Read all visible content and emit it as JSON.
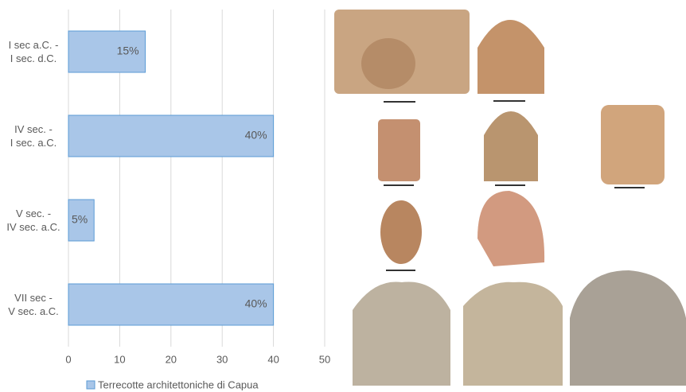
{
  "chart_data": {
    "type": "bar",
    "orientation": "horizontal",
    "categories": [
      "I sec a.C. -\nI sec. d.C.",
      "IV sec. -\nI sec. a.C.",
      "V sec. -\nIV sec. a.C.",
      "VII sec -\nV sec. a.C."
    ],
    "series": [
      {
        "name": "Terrecotte architettoniche di Capua",
        "color": "#a9c6e8",
        "values": [
          15,
          40,
          5,
          40
        ],
        "value_labels": [
          "15%",
          "40%",
          "5%",
          "40%"
        ]
      }
    ],
    "xlim": [
      0,
      50
    ],
    "xticks": [
      0,
      10,
      20,
      30,
      40,
      50
    ],
    "grid": true,
    "legend": "bottom"
  }
}
